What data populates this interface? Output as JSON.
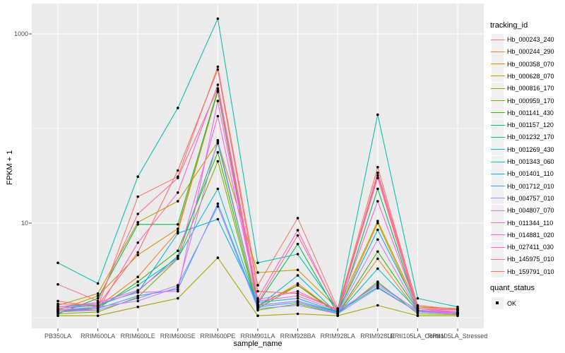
{
  "colors": {
    "panel_bg": "#EBEBEB",
    "grid": "#FFFFFF",
    "axis_text": "#4D4D4D",
    "tick_mark": "#4D4D4D",
    "point": "#000000",
    "legend_key_bg": "#F0F0F0"
  },
  "legend": {
    "tracking_title": "tracking_id",
    "quant_title": "quant_status",
    "quant_items": [
      {
        "label": "OK"
      }
    ]
  },
  "chart_data": {
    "type": "line",
    "title": "",
    "xlabel": "sample_name",
    "ylabel": "FPKM + 1",
    "yscale": "log10",
    "ylim": [
      1,
      1800
    ],
    "grid": "on",
    "legend_position": "right",
    "y_ticks": [
      {
        "value": 10,
        "label": "10"
      },
      {
        "value": 1000,
        "label": "1000"
      }
    ],
    "y_minor": [
      1,
      100
    ],
    "categories": [
      "PB350LA",
      "RRIM600LA",
      "RRIM600LE",
      "RRIM600SE",
      "RRIM600PE",
      "RRIM901LA",
      "RRIM928BA",
      "RRIM928LA",
      "RRIM928LE",
      "RRII105LA_Control",
      "RRII105LA_Stressed"
    ],
    "series": [
      {
        "name": "Hb_000243_240",
        "color": "#F8766D",
        "values": [
          1.5,
          1.3,
          19,
          31,
          450,
          2.2,
          11.3,
          1.25,
          39,
          1.3,
          1.2
        ]
      },
      {
        "name": "Hb_000244_290",
        "color": "#EA8331",
        "values": [
          1.15,
          1.3,
          2.7,
          8.2,
          250,
          1.3,
          2.3,
          1.1,
          4.2,
          1.15,
          1.1
        ]
      },
      {
        "name": "Hb_000358_070",
        "color": "#D89000",
        "values": [
          1.2,
          1.7,
          4.6,
          8.7,
          245,
          1.35,
          2.2,
          1.15,
          10,
          1.2,
          1.1
        ]
      },
      {
        "name": "Hb_000628_070",
        "color": "#C09B00",
        "values": [
          1.35,
          1.8,
          10.2,
          17,
          72,
          3.0,
          3.2,
          1.25,
          10.5,
          1.3,
          1.25
        ]
      },
      {
        "name": "Hb_000816_170",
        "color": "#A3A500",
        "values": [
          1.05,
          1.05,
          1.3,
          1.6,
          4.3,
          1.05,
          1.1,
          1.05,
          1.35,
          1.05,
          1.05
        ]
      },
      {
        "name": "Hb_000959_170",
        "color": "#7CAE00",
        "values": [
          1.1,
          1.15,
          1.65,
          4.2,
          45,
          1.2,
          1.4,
          1.1,
          2.4,
          1.1,
          1.08
        ]
      },
      {
        "name": "Hb_001141_430",
        "color": "#39B600",
        "values": [
          1.15,
          1.25,
          2.4,
          5.1,
          56,
          1.25,
          2.2,
          1.1,
          5.0,
          1.2,
          1.15
        ]
      },
      {
        "name": "Hb_001157_120",
        "color": "#00BB4E",
        "values": [
          1.1,
          1.6,
          9.7,
          9.7,
          255,
          1.4,
          6.0,
          1.1,
          23,
          1.2,
          1.1
        ]
      },
      {
        "name": "Hb_001232_170",
        "color": "#00C087",
        "values": [
          1.25,
          1.35,
          1.9,
          4.5,
          70,
          1.35,
          1.5,
          1.15,
          2.1,
          1.15,
          1.1
        ]
      },
      {
        "name": "Hb_001269_430",
        "color": "#00C1A3",
        "values": [
          3.8,
          2.3,
          31,
          165,
          1450,
          3.8,
          4.7,
          1.2,
          140,
          1.6,
          1.3
        ]
      },
      {
        "name": "Hb_001343_060",
        "color": "#00BCD8",
        "values": [
          1.2,
          1.3,
          2.2,
          4.3,
          23,
          1.3,
          2.8,
          1.1,
          3.3,
          1.2,
          1.12
        ]
      },
      {
        "name": "Hb_001401_110",
        "color": "#00B0F6",
        "values": [
          1.3,
          1.4,
          1.85,
          7.8,
          11,
          1.45,
          1.6,
          1.15,
          8.5,
          1.25,
          1.15
        ]
      },
      {
        "name": "Hb_001712_010",
        "color": "#35A2FF",
        "values": [
          1.2,
          1.25,
          1.7,
          2.0,
          16,
          1.3,
          1.45,
          1.12,
          2.3,
          1.18,
          1.1
        ]
      },
      {
        "name": "Hb_004757_010",
        "color": "#9590FF",
        "values": [
          1.15,
          1.2,
          1.6,
          2.2,
          15,
          1.25,
          1.35,
          1.1,
          2.05,
          1.15,
          1.1
        ]
      },
      {
        "name": "Hb_004807_070",
        "color": "#C77CFF",
        "values": [
          1.2,
          1.3,
          1.5,
          2.1,
          75,
          1.35,
          1.5,
          1.12,
          6.7,
          1.2,
          1.12
        ]
      },
      {
        "name": "Hb_011344_110",
        "color": "#E76BF3",
        "values": [
          1.25,
          1.4,
          1.85,
          1.9,
          195,
          1.5,
          1.7,
          1.18,
          2.2,
          1.2,
          1.1
        ]
      },
      {
        "name": "Hb_014881_020",
        "color": "#FA62DB",
        "values": [
          1.3,
          1.45,
          1.95,
          4.2,
          135,
          1.55,
          1.9,
          1.2,
          17,
          1.25,
          1.15
        ]
      },
      {
        "name": "Hb_027411_030",
        "color": "#FF62BC",
        "values": [
          1.2,
          1.2,
          6.2,
          21,
          290,
          1.6,
          8.4,
          1.15,
          32,
          1.25,
          1.2
        ]
      },
      {
        "name": "Hb_145975_010",
        "color": "#FF6A98",
        "values": [
          2.25,
          1.5,
          12.5,
          30,
          265,
          1.45,
          7.4,
          1.2,
          30,
          1.2,
          1.15
        ]
      },
      {
        "name": "Hb_159791_010",
        "color": "#FF6C67",
        "values": [
          1.4,
          1.35,
          4.9,
          36,
          420,
          1.9,
          1.8,
          1.22,
          34,
          1.35,
          1.22
        ]
      }
    ]
  }
}
